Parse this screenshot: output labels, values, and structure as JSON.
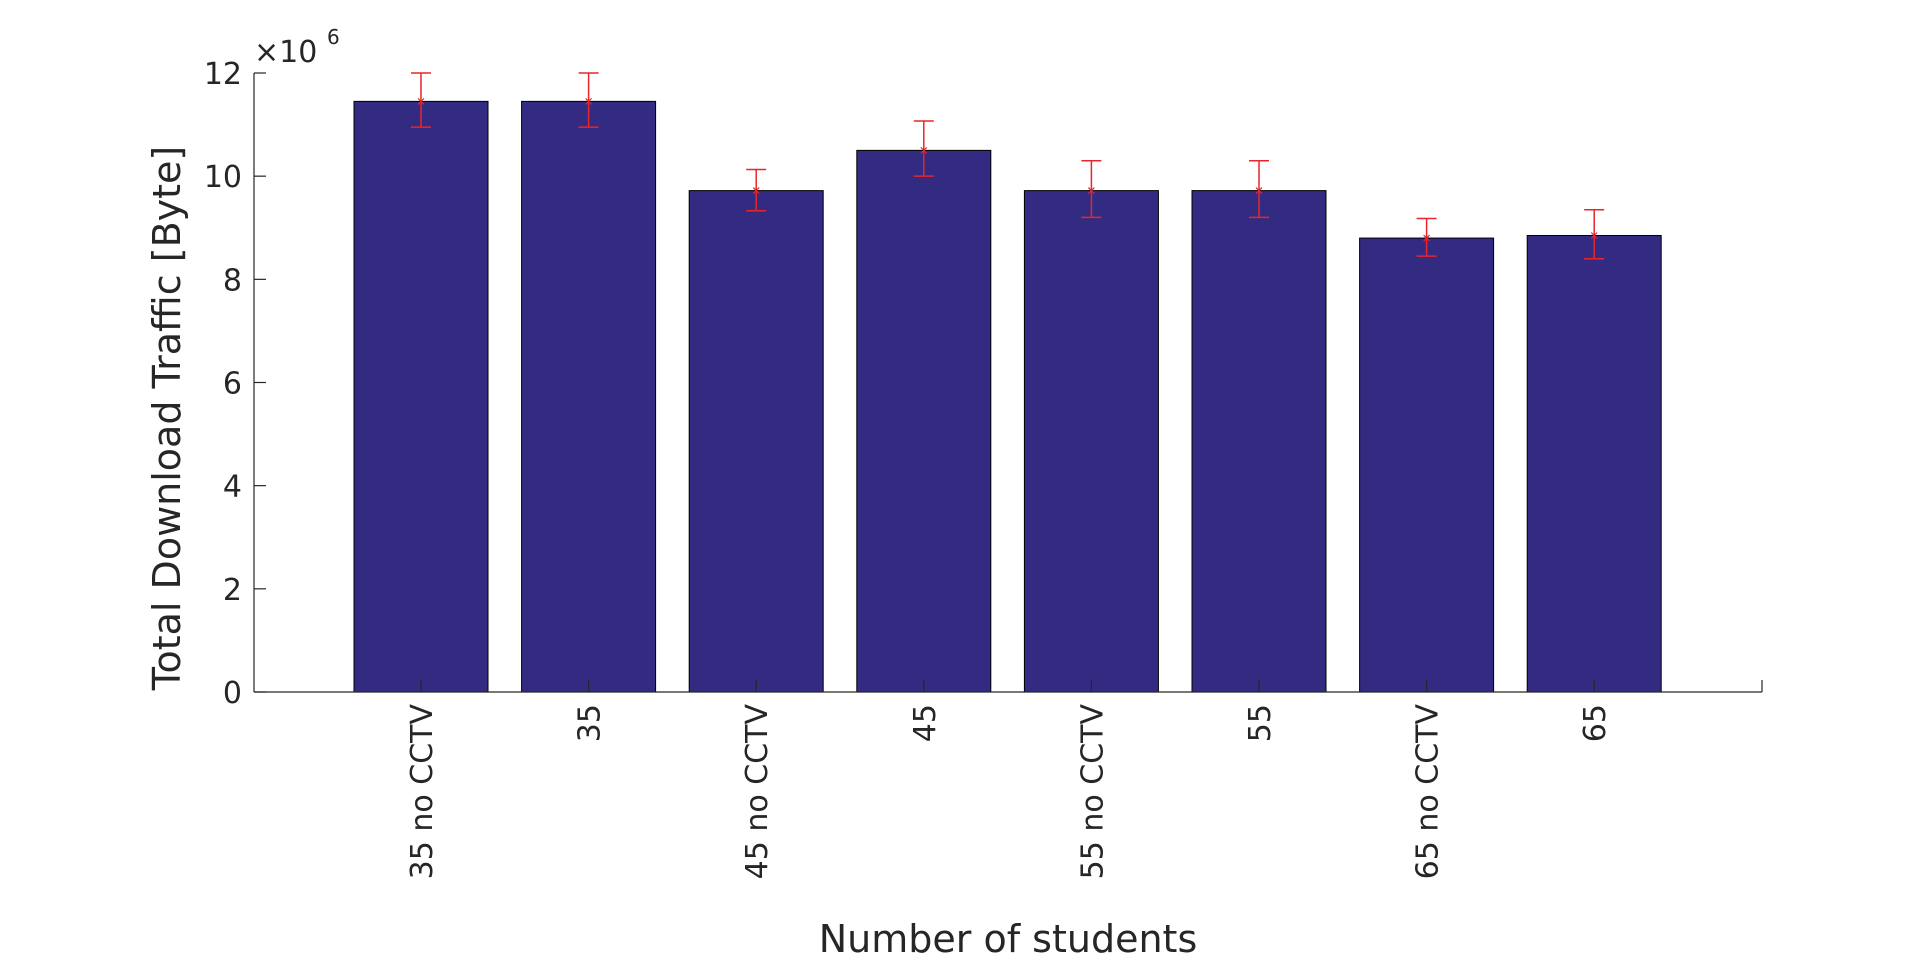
{
  "chart_data": {
    "type": "bar",
    "categories": [
      "35 no CCTV",
      "35",
      "45 no CCTV",
      "45",
      "55 no CCTV",
      "55",
      "65 no CCTV",
      "65"
    ],
    "values": [
      11.45,
      11.45,
      9.72,
      10.5,
      9.72,
      9.72,
      8.8,
      8.85
    ],
    "error_low": [
      10.95,
      10.95,
      9.33,
      10.0,
      9.2,
      9.2,
      8.45,
      8.4
    ],
    "error_high": [
      12.0,
      12.0,
      10.13,
      11.07,
      10.3,
      10.3,
      9.18,
      9.35
    ],
    "xlabel": "Number of students",
    "ylabel": "Total Download Traffic [Byte]",
    "ylim": [
      0,
      12
    ],
    "yticks": [
      0,
      2,
      4,
      6,
      8,
      10,
      12
    ],
    "y_multiplier_base": "×10",
    "y_multiplier_exponent": "6",
    "grid": false,
    "colors": {
      "bar": "#332a82",
      "error": "#e8262a",
      "axis": "#262626"
    }
  }
}
